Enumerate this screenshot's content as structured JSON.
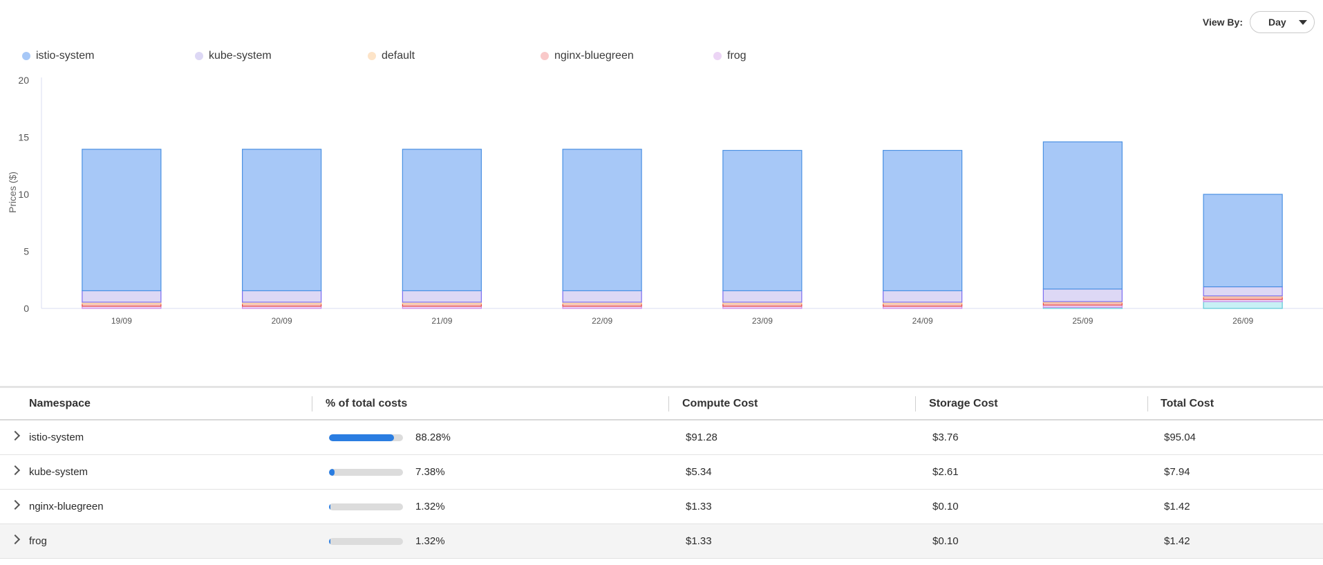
{
  "view_by": {
    "label": "View By:",
    "selected": "Day"
  },
  "chart_data": {
    "type": "bar",
    "stacked": true,
    "ylabel": "Prices ($)",
    "xlabel": "",
    "ylim": [
      0,
      20
    ],
    "yticks": [
      0,
      5,
      10,
      15,
      20
    ],
    "categories": [
      "19/09",
      "20/09",
      "21/09",
      "22/09",
      "23/09",
      "24/09",
      "25/09",
      "26/09"
    ],
    "legend_position": "top-left",
    "series": [
      {
        "name": "istio-system",
        "color": "#a7c8f7",
        "stroke": "#4a90e2",
        "values": [
          12.4,
          12.4,
          12.4,
          12.4,
          12.3,
          12.3,
          12.9,
          8.1
        ]
      },
      {
        "name": "kube-system",
        "color": "#ddd8f5",
        "stroke": "#7a6cf0",
        "values": [
          1.0,
          1.0,
          1.0,
          1.0,
          1.0,
          1.0,
          1.1,
          0.8
        ]
      },
      {
        "name": "default",
        "color": "#fde4c8",
        "stroke": "#f5c190",
        "values": [
          0.15,
          0.15,
          0.15,
          0.15,
          0.15,
          0.15,
          0.1,
          0.1
        ]
      },
      {
        "name": "nginx-bluegreen",
        "color": "#f9c9c9",
        "stroke": "#e8473b",
        "values": [
          0.2,
          0.2,
          0.2,
          0.2,
          0.2,
          0.2,
          0.2,
          0.2
        ]
      },
      {
        "name": "frog",
        "color": "#ecd5f5",
        "stroke": "#d08ae6",
        "values": [
          0.2,
          0.2,
          0.2,
          0.2,
          0.2,
          0.2,
          0.2,
          0.2
        ]
      }
    ],
    "base_segment": {
      "color": "#c8f0f5",
      "stroke": "#5fc8d8",
      "values": [
        0,
        0,
        0,
        0,
        0,
        0,
        0.1,
        0.6
      ]
    }
  },
  "table": {
    "headers": [
      "Namespace",
      "% of total costs",
      "Compute Cost",
      "Storage Cost",
      "Total Cost"
    ],
    "rows": [
      {
        "namespace": "istio-system",
        "pct_label": "88.28%",
        "pct": 0.8828,
        "compute": "$91.28",
        "storage": "$3.76",
        "total": "$95.04"
      },
      {
        "namespace": "kube-system",
        "pct_label": "7.38%",
        "pct": 0.0738,
        "compute": "$5.34",
        "storage": "$2.61",
        "total": "$7.94"
      },
      {
        "namespace": "nginx-bluegreen",
        "pct_label": "1.32%",
        "pct": 0.0132,
        "compute": "$1.33",
        "storage": "$0.10",
        "total": "$1.42"
      },
      {
        "namespace": "frog",
        "pct_label": "1.32%",
        "pct": 0.0132,
        "compute": "$1.33",
        "storage": "$0.10",
        "total": "$1.42"
      }
    ]
  }
}
